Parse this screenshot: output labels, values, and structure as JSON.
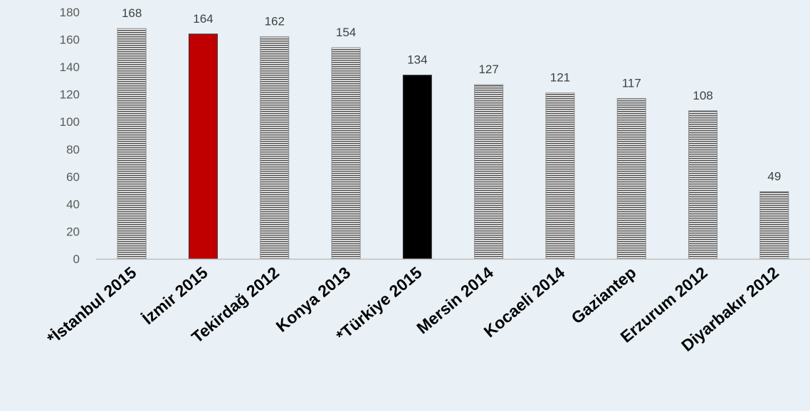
{
  "chart_data": {
    "type": "bar",
    "categories": [
      "*İstanbul 2015",
      "İzmir 2015",
      "Tekirdağ 2012",
      "Konya 2013",
      "*Türkiye 2015",
      "Mersin 2014",
      "Kocaeli 2014",
      "Gaziantep",
      "Erzurum 2012",
      "Diyarbakır 2012"
    ],
    "values": [
      168,
      164,
      162,
      154,
      134,
      127,
      121,
      117,
      108,
      49
    ],
    "bar_styles": [
      "striped",
      "solid",
      "striped",
      "striped",
      "solid",
      "striped",
      "striped",
      "striped",
      "striped",
      "striped"
    ],
    "bar_colors": [
      "#555555",
      "#c00000",
      "#555555",
      "#555555",
      "#000000",
      "#555555",
      "#555555",
      "#555555",
      "#555555",
      "#555555"
    ],
    "y_ticks": [
      0,
      20,
      40,
      60,
      80,
      100,
      120,
      140,
      160,
      180
    ],
    "ylim": [
      0,
      180
    ],
    "grid": false,
    "legend": "none",
    "title": "",
    "xlabel": "",
    "ylabel": ""
  },
  "colors": {
    "background": "#e9f1f6",
    "stripe_dark": "#555555",
    "stripe_light": "#ffffff",
    "highlight_red": "#c00000",
    "highlight_black": "#000000",
    "axis": "#bfbfbf"
  }
}
